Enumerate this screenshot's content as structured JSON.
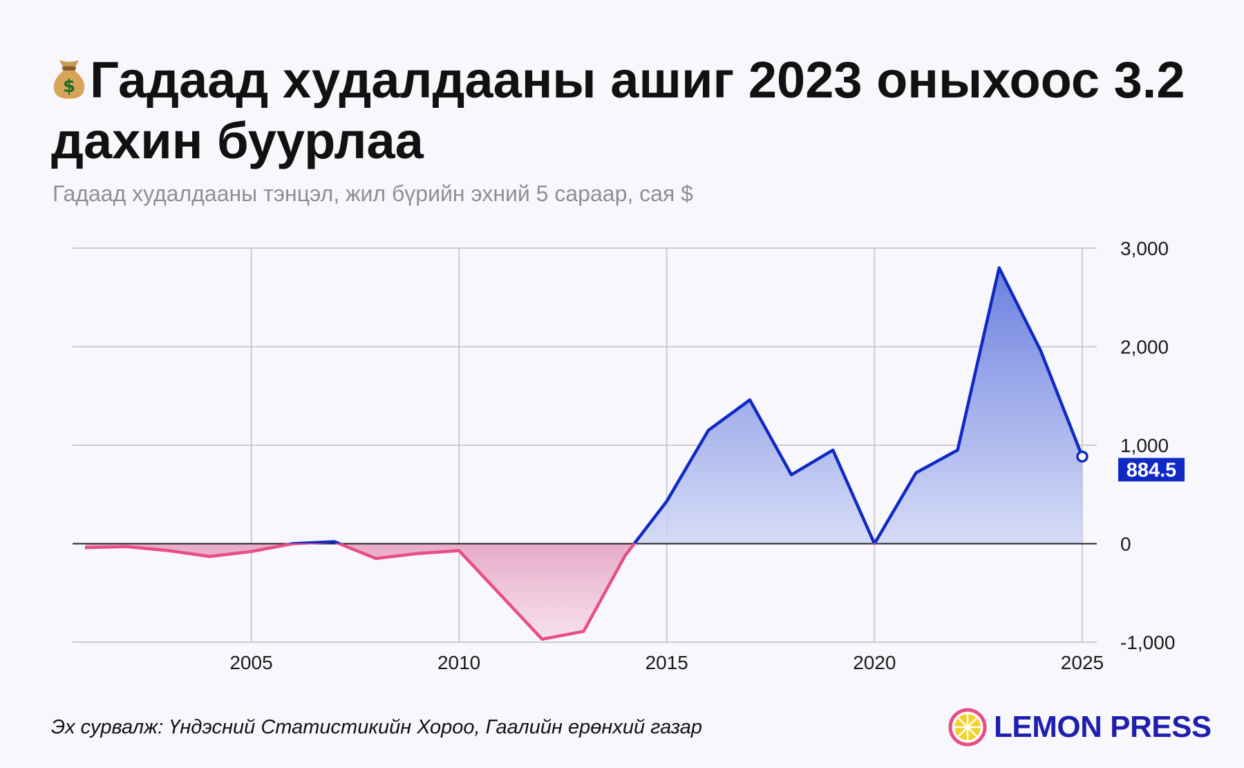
{
  "title": "Гадаад худалдааны ашиг 2023 оныхоос 3.2 дахин буурлаа",
  "title_icon": "money-bag-icon",
  "subtitle": "Гадаад худалдааны тэнцэл, жил бүрийн эхний 5 сараар, сая $",
  "source": "Эх сурвалж: Үндэсний Статистикийн Хороо, Гаалийн ерөнхий газар",
  "brand": "LEMON PRESS",
  "colors": {
    "positive": "#1029c4",
    "negative": "#e84d86",
    "brand": "#1f1fae"
  },
  "chart_data": {
    "type": "area",
    "x": [
      2001,
      2002,
      2003,
      2004,
      2005,
      2006,
      2007,
      2008,
      2009,
      2010,
      2011,
      2012,
      2013,
      2014,
      2015,
      2016,
      2017,
      2018,
      2019,
      2020,
      2021,
      2022,
      2023,
      2024,
      2025
    ],
    "values": [
      -40,
      -30,
      -70,
      -130,
      -80,
      0,
      20,
      -150,
      -100,
      -70,
      -520,
      -970,
      -890,
      -120,
      430,
      1150,
      1460,
      700,
      950,
      0,
      720,
      950,
      2800,
      1960,
      884.5
    ],
    "xlim": [
      2000.7,
      2025.35
    ],
    "ylim": [
      -1000,
      3000
    ],
    "xticks": [
      2005,
      2010,
      2015,
      2020,
      2025
    ],
    "xtick_labels": [
      "2005",
      "2010",
      "2015",
      "2020",
      "2025"
    ],
    "yticks": [
      3000,
      2000,
      1000,
      0,
      -1000
    ],
    "ytick_labels": [
      "3,000",
      "2,000",
      "1,000",
      "0",
      "-1,000"
    ],
    "grid": true,
    "last_value_label": "884.5"
  }
}
